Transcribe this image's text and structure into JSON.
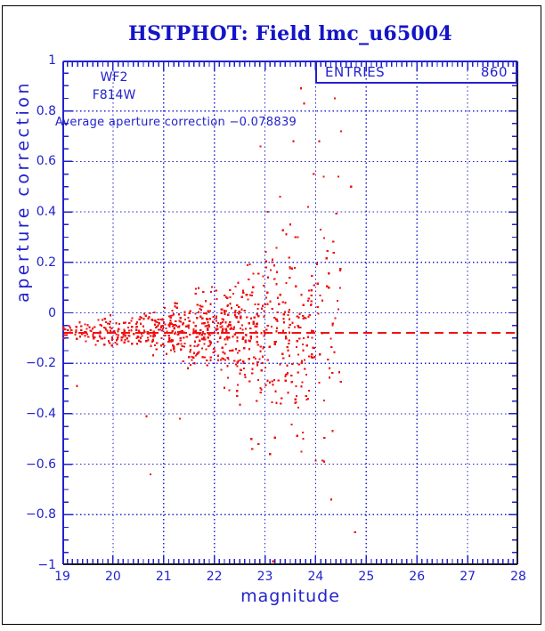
{
  "title": "HSTPHOT: Field lmc_u65004",
  "colors": {
    "blue": "#2222cc",
    "title_blue": "#1414c8",
    "red": "#f01212",
    "axis_dark": "#181818",
    "background": "#ffffff",
    "frame_border": "#000000"
  },
  "stats_box": {
    "label": "ENTRIES",
    "value": "860"
  },
  "labels": {
    "camera": "WF2",
    "filter": "F814W",
    "average": "Average aperture correction −0.078839"
  },
  "chart_data": {
    "type": "scatter",
    "title": "HSTPHOT: Field lmc_u65004",
    "xlabel": "magnitude",
    "ylabel": "aperture correction",
    "xlim": [
      19,
      28
    ],
    "ylim": [
      -1,
      1
    ],
    "grid": true,
    "x_major_ticks": [
      19,
      20,
      21,
      22,
      23,
      24,
      25,
      26,
      27,
      28
    ],
    "x_tick_labels": [
      "19",
      "20",
      "21",
      "22",
      "23",
      "24",
      "25",
      "26",
      "27",
      "28"
    ],
    "x_minor_step": 0.1,
    "y_major_ticks": [
      1,
      0.8,
      0.6,
      0.4,
      0.2,
      0,
      -0.2,
      -0.4,
      -0.6,
      -0.8,
      -1
    ],
    "y_tick_labels": [
      "1",
      "0.8",
      "0.6",
      "0.4",
      "0.2",
      "0",
      "−0.2",
      "−0.4",
      "−0.6",
      "−0.8",
      "−1"
    ],
    "y_minor_step": 0.05,
    "entries": 860,
    "average_aperture_correction": -0.078839,
    "mean_line_y": -0.078839,
    "marker": "small-red-square",
    "seed": 13,
    "cluster_bins": [
      {
        "x0": 19.0,
        "x1": 19.5,
        "n": 30,
        "mean": -0.072,
        "sigma": 0.02
      },
      {
        "x0": 19.5,
        "x1": 20.0,
        "n": 42,
        "mean": -0.073,
        "sigma": 0.022
      },
      {
        "x0": 20.0,
        "x1": 20.5,
        "n": 48,
        "mean": -0.074,
        "sigma": 0.028
      },
      {
        "x0": 20.5,
        "x1": 21.0,
        "n": 70,
        "mean": -0.074,
        "sigma": 0.038
      },
      {
        "x0": 21.0,
        "x1": 21.5,
        "n": 90,
        "mean": -0.075,
        "sigma": 0.05
      },
      {
        "x0": 21.5,
        "x1": 22.0,
        "n": 105,
        "mean": -0.075,
        "sigma": 0.07
      },
      {
        "x0": 22.0,
        "x1": 22.5,
        "n": 112,
        "mean": -0.075,
        "sigma": 0.095
      },
      {
        "x0": 22.5,
        "x1": 23.0,
        "n": 100,
        "mean": -0.072,
        "sigma": 0.13
      },
      {
        "x0": 23.0,
        "x1": 23.5,
        "n": 88,
        "mean": -0.07,
        "sigma": 0.17
      },
      {
        "x0": 23.5,
        "x1": 24.0,
        "n": 78,
        "mean": -0.06,
        "sigma": 0.21
      },
      {
        "x0": 24.0,
        "x1": 24.5,
        "n": 40,
        "mean": -0.06,
        "sigma": 0.24
      }
    ],
    "outlier_points": [
      [
        19.29,
        -0.29
      ],
      [
        19.95,
        -0.01
      ],
      [
        20.66,
        -0.41
      ],
      [
        20.74,
        -0.64
      ],
      [
        21.32,
        -0.42
      ],
      [
        22.45,
        -0.33
      ],
      [
        22.73,
        -0.5
      ],
      [
        22.87,
        -0.52
      ],
      [
        22.75,
        -0.54
      ],
      [
        23.1,
        -0.56
      ],
      [
        23.72,
        -0.55
      ],
      [
        24.17,
        -0.59
      ],
      [
        24.31,
        -0.74
      ],
      [
        24.78,
        -0.87
      ],
      [
        23.16,
        -0.99
      ],
      [
        23.71,
        0.89
      ],
      [
        23.77,
        0.83
      ],
      [
        24.38,
        0.85
      ],
      [
        24.5,
        0.72
      ],
      [
        24.07,
        0.68
      ],
      [
        23.56,
        0.68
      ],
      [
        22.91,
        0.66
      ],
      [
        23.96,
        0.55
      ],
      [
        24.16,
        0.54
      ],
      [
        24.45,
        0.54
      ],
      [
        24.7,
        0.5
      ],
      [
        23.3,
        0.46
      ],
      [
        23.85,
        0.42
      ],
      [
        23.05,
        0.4
      ],
      [
        23.5,
        0.35
      ],
      [
        24.1,
        0.33
      ],
      [
        23.65,
        0.3
      ]
    ]
  }
}
